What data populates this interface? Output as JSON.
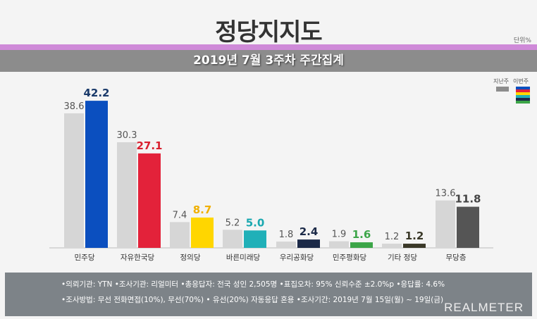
{
  "title": "정당지지도",
  "unit": "단위%",
  "subtitle": "2019년 7월 3주차 주간집계",
  "legend": {
    "last": "지난주",
    "this": "이번주"
  },
  "chart_data": {
    "type": "bar",
    "categories": [
      "민주당",
      "자유한국당",
      "정의당",
      "바른미래당",
      "우리공화당",
      "민주평화당",
      "기타 정당",
      "무당층"
    ],
    "series": [
      {
        "name": "지난주",
        "values": [
          38.6,
          30.3,
          7.4,
          5.2,
          1.8,
          1.9,
          1.2,
          13.6
        ],
        "color": "#d6d6d6"
      },
      {
        "name": "이번주",
        "values": [
          42.2,
          27.1,
          8.7,
          5.0,
          2.4,
          1.6,
          1.2,
          11.8
        ],
        "colors": [
          "#0b4fbf",
          "#e3223a",
          "#ffd600",
          "#20b0b8",
          "#1c2a48",
          "#3ca548",
          "#3a3828",
          "#555555"
        ],
        "label_colors": [
          "#1a3a6a",
          "#d8202f",
          "#f0b000",
          "#1aa8b0",
          "#1c2a48",
          "#3ca548",
          "#3a3828",
          "#444444"
        ]
      }
    ],
    "ylim": [
      0,
      45
    ],
    "xlabel": "",
    "ylabel": ""
  },
  "footer": {
    "line1": "•의뢰기관: YTN •조사기관: 리얼미터 •총응답자: 전국 성인 2,505명 •표집오차: 95% 신뢰수준 ±2.0%p •응답률: 4.6%",
    "line2": "•조사방법: 무선 전화면접(10%), 무선(70%) • 유선(20%) 자동응답 혼용  •조사기간: 2019년 7월 15일(월) ~ 19일(금)",
    "logo": "REALMETER"
  }
}
